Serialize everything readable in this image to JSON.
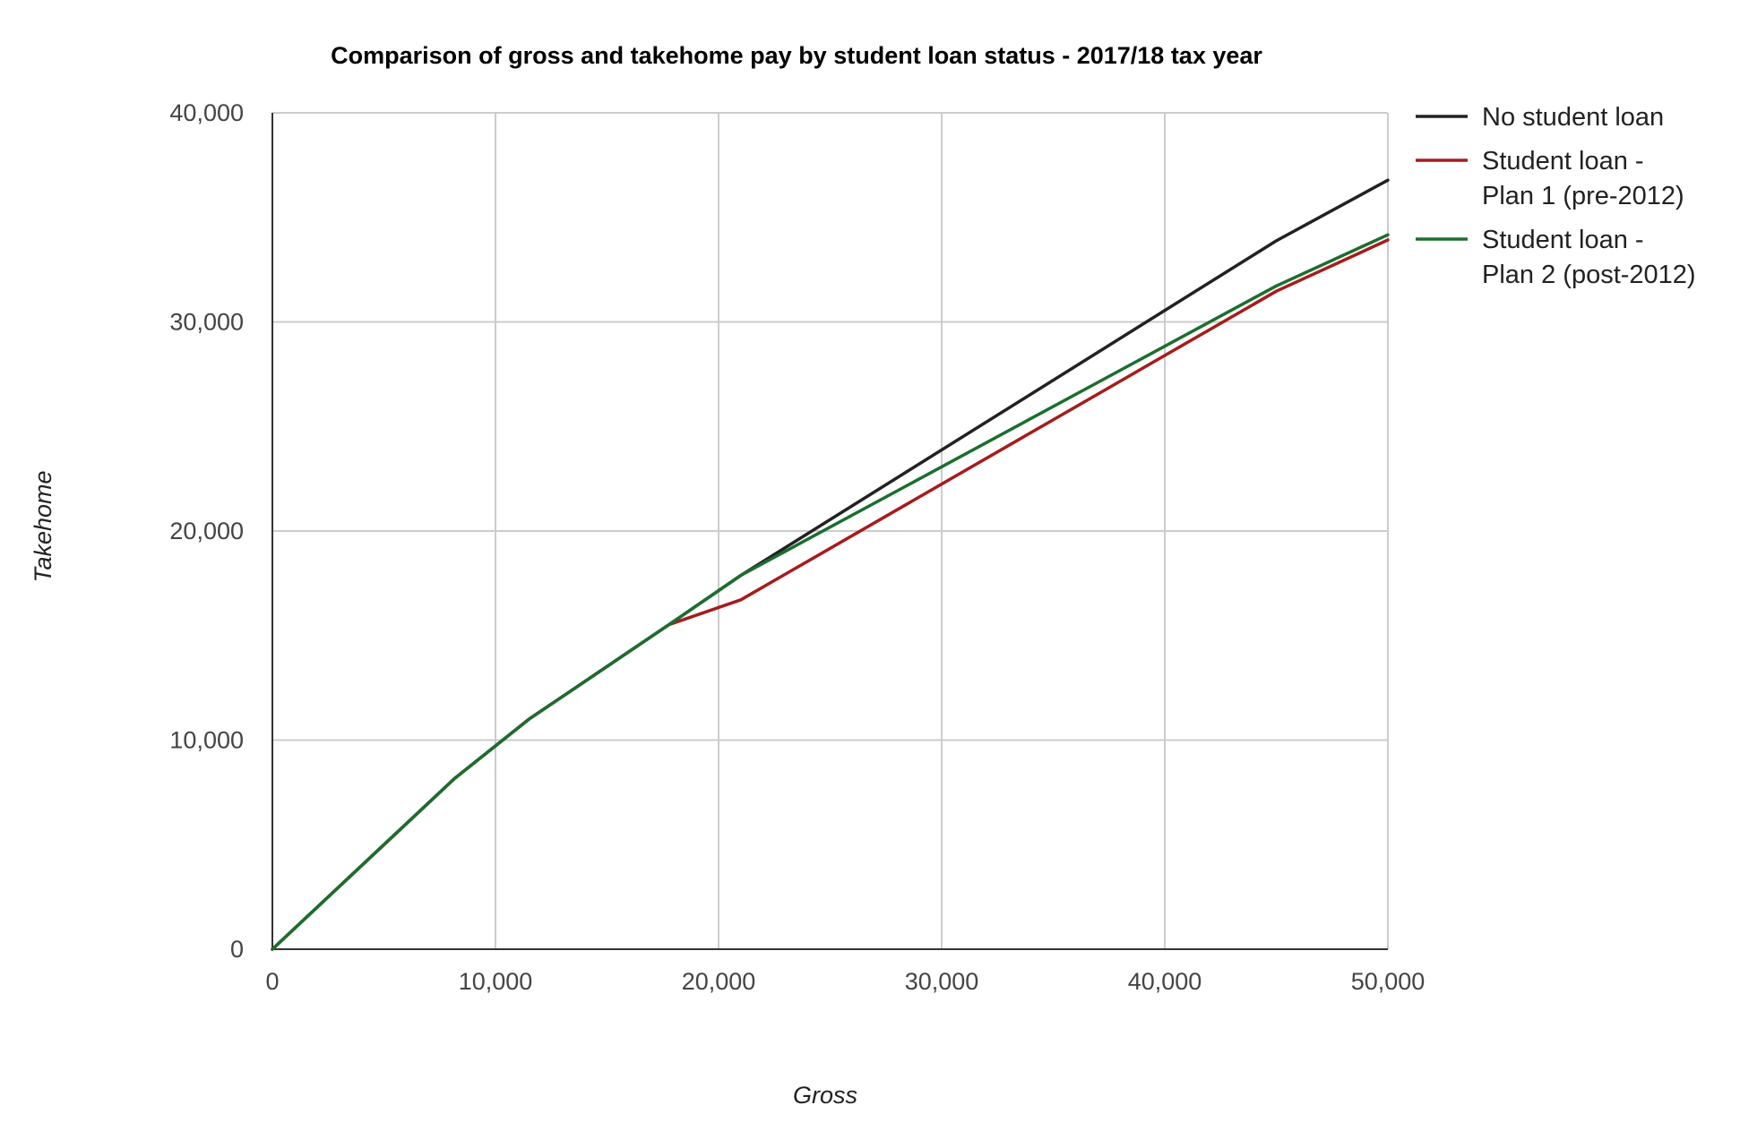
{
  "chart_data": {
    "type": "line",
    "title": "Comparison of gross and takehome pay by student loan status - 2017/18 tax year",
    "xlabel": "Gross",
    "ylabel": "Takehome",
    "xlim": [
      0,
      50000
    ],
    "ylim": [
      0,
      40000
    ],
    "x_ticks": [
      "0",
      "10,000",
      "20,000",
      "30,000",
      "40,000",
      "50,000"
    ],
    "y_ticks": [
      "0",
      "10,000",
      "20,000",
      "30,000",
      "40,000"
    ],
    "grid": true,
    "legend_position": "right",
    "x": [
      0,
      8164,
      11500,
      17775,
      21000,
      45000,
      50000
    ],
    "series": [
      {
        "name": [
          "No student loan"
        ],
        "color": "#222222",
        "values": [
          0,
          8164,
          11000,
          15519,
          17879,
          33879,
          36779
        ]
      },
      {
        "name": [
          "Student loan -",
          "Plan 1 (pre-2012)"
        ],
        "color": "#a61c1c",
        "values": [
          0,
          8164,
          11000,
          15519,
          16710,
          31470,
          33919
        ]
      },
      {
        "name": [
          "Student loan -",
          "Plan 2 (post-2012)"
        ],
        "color": "#1b6e2e",
        "values": [
          0,
          8164,
          11000,
          15519,
          17879,
          31720,
          34169
        ]
      }
    ]
  }
}
